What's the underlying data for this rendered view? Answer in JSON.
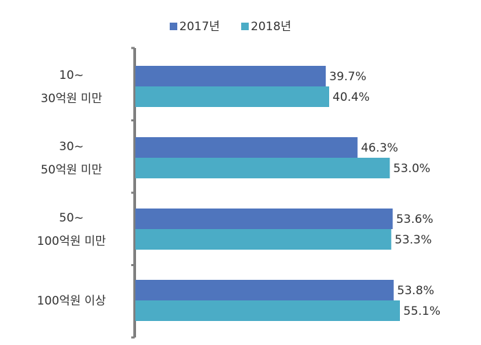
{
  "chart_data": {
    "type": "bar",
    "orientation": "horizontal",
    "categories": [
      [
        "10~",
        "30억원 미만"
      ],
      [
        "30~",
        "50억원 미만"
      ],
      [
        "50~",
        "100억원 미만"
      ],
      [
        "100억원 이상"
      ]
    ],
    "series": [
      {
        "name": "2017년",
        "color": "#4F75BD",
        "values": [
          39.7,
          46.3,
          53.6,
          53.8
        ],
        "labels": [
          "39.7%",
          "46.3%",
          "53.6%",
          "53.8%"
        ]
      },
      {
        "name": "2018년",
        "color": "#4BACC6",
        "values": [
          40.4,
          53.0,
          53.3,
          55.1
        ],
        "labels": [
          "40.4%",
          "53.0%",
          "53.3%",
          "55.1%"
        ]
      }
    ],
    "xlim": [
      0,
      55.1
    ],
    "legend_position": "top",
    "grid": false,
    "title": "",
    "xlabel": "",
    "ylabel": ""
  }
}
